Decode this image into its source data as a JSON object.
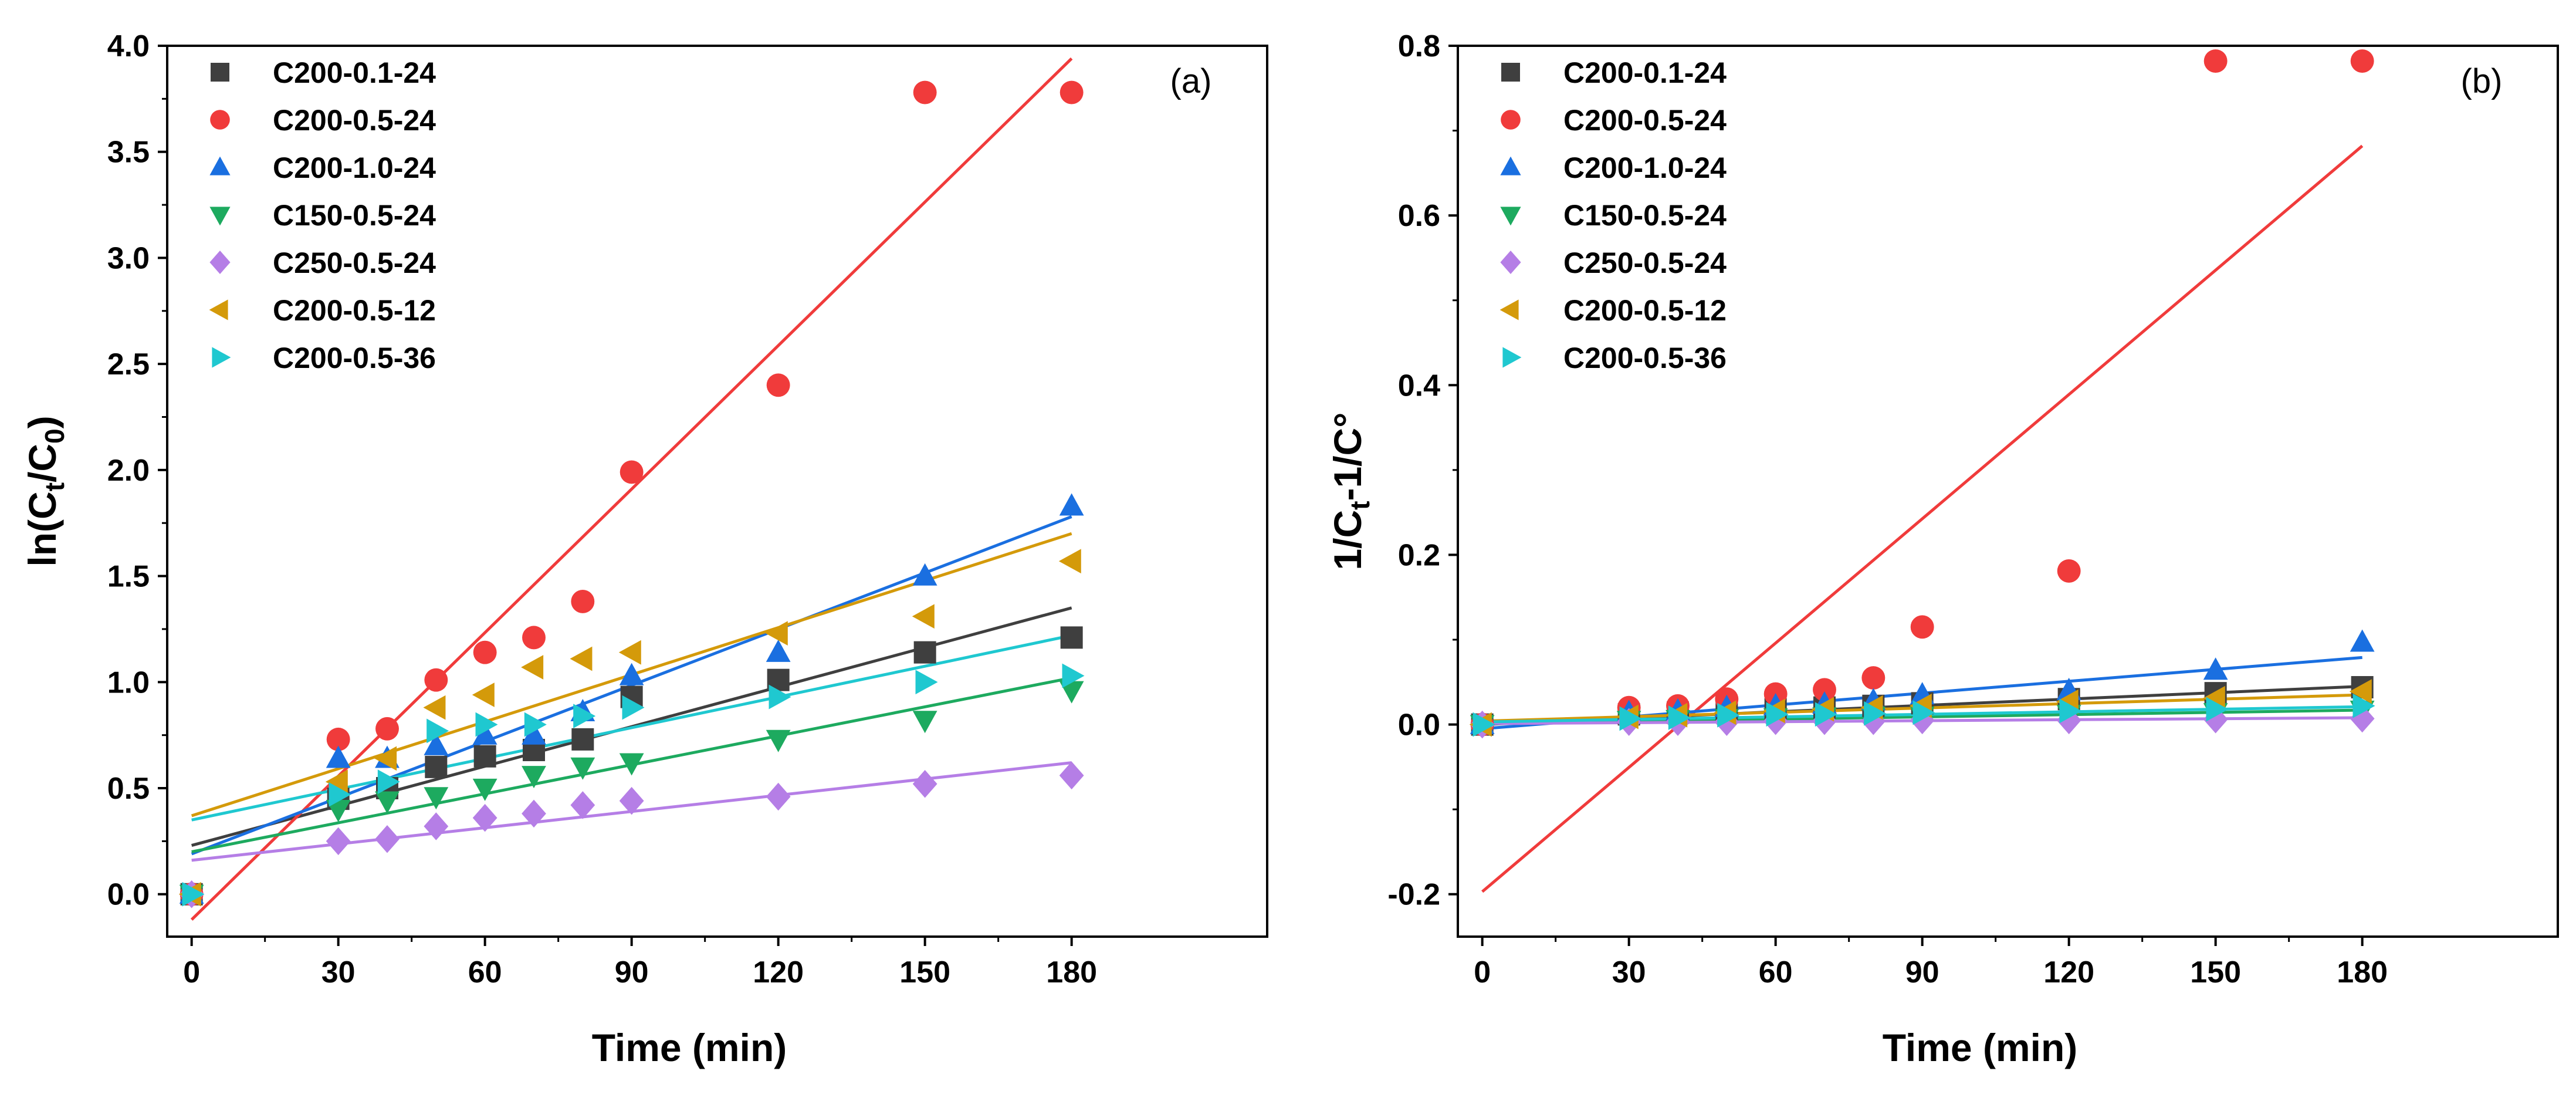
{
  "chart_data": [
    {
      "type": "scatter",
      "panel_label": "(a)",
      "xlabel": "Time (min)",
      "ylabel_parts": [
        "ln(C",
        "t",
        "/C",
        "0",
        ")"
      ],
      "xlim": [
        -5,
        220
      ],
      "ylim": [
        -0.2,
        4.0
      ],
      "xticks": [
        0,
        30,
        60,
        90,
        120,
        150,
        180
      ],
      "yticks": [
        0.0,
        0.5,
        1.0,
        1.5,
        2.0,
        2.5,
        3.0,
        3.5,
        4.0
      ],
      "ytick_labels": [
        "0.0",
        "0.5",
        "1.0",
        "1.5",
        "2.0",
        "2.5",
        "3.0",
        "3.5",
        "4.0"
      ],
      "legend_position": "top-left",
      "x": [
        0,
        30,
        40,
        50,
        60,
        70,
        80,
        90,
        120,
        150,
        180
      ],
      "series": [
        {
          "name": "C200-0.1-24",
          "marker": "square",
          "color": "#3f3f3f",
          "values": [
            0,
            0.45,
            0.5,
            0.6,
            0.65,
            0.68,
            0.73,
            0.93,
            1.01,
            1.14,
            1.21
          ],
          "fit": [
            0.23,
            1.35
          ]
        },
        {
          "name": "C200-0.5-24",
          "marker": "circle",
          "color": "#f03b3b",
          "values": [
            0,
            0.73,
            0.78,
            1.01,
            1.14,
            1.21,
            1.38,
            1.99,
            2.4,
            3.78,
            3.78
          ],
          "fit": [
            -0.12,
            3.94
          ]
        },
        {
          "name": "C200-1.0-24",
          "marker": "triangle-up",
          "color": "#1a6fe0",
          "values": [
            0,
            0.64,
            0.64,
            0.7,
            0.75,
            0.75,
            0.86,
            1.03,
            1.14,
            1.5,
            1.83
          ],
          "fit": [
            0.19,
            1.78
          ]
        },
        {
          "name": "C150-0.5-24",
          "marker": "triangle-down",
          "color": "#1daa5f",
          "values": [
            0,
            0.4,
            0.44,
            0.46,
            0.5,
            0.56,
            0.6,
            0.62,
            0.73,
            0.82,
            0.96
          ],
          "fit": [
            0.2,
            1.02
          ]
        },
        {
          "name": "C250-0.5-24",
          "marker": "diamond",
          "color": "#b57ee6",
          "values": [
            0,
            0.25,
            0.26,
            0.32,
            0.36,
            0.38,
            0.42,
            0.44,
            0.46,
            0.52,
            0.56
          ],
          "fit": [
            0.16,
            0.62
          ]
        },
        {
          "name": "C200-0.5-12",
          "marker": "triangle-left",
          "color": "#d49a0a",
          "values": [
            0,
            0.53,
            0.64,
            0.88,
            0.94,
            1.07,
            1.11,
            1.14,
            1.23,
            1.31,
            1.57
          ],
          "fit": [
            0.37,
            1.7
          ]
        },
        {
          "name": "C200-0.5-36",
          "marker": "triangle-right",
          "color": "#1fc8d0",
          "values": [
            0,
            0.47,
            0.53,
            0.77,
            0.8,
            0.8,
            0.84,
            0.88,
            0.93,
            1.0,
            1.03
          ],
          "fit": [
            0.35,
            1.22
          ]
        }
      ]
    },
    {
      "type": "scatter",
      "panel_label": "(b)",
      "xlabel": "Time (min)",
      "ylabel_parts": [
        "1/C",
        "t",
        "-1/C°"
      ],
      "xlim": [
        -5,
        220
      ],
      "ylim": [
        -0.25,
        0.8
      ],
      "xticks": [
        0,
        30,
        60,
        90,
        120,
        150,
        180
      ],
      "yticks": [
        -0.2,
        0.0,
        0.2,
        0.4,
        0.6,
        0.8
      ],
      "ytick_labels": [
        "-0.2",
        "0.0",
        "0.2",
        "0.4",
        "0.6",
        "0.8"
      ],
      "legend_position": "top-left",
      "x": [
        0,
        30,
        40,
        50,
        60,
        70,
        80,
        90,
        120,
        150,
        180
      ],
      "series": [
        {
          "name": "C200-0.1-24",
          "marker": "square",
          "color": "#3f3f3f",
          "values": [
            0,
            0.012,
            0.014,
            0.016,
            0.018,
            0.02,
            0.022,
            0.025,
            0.03,
            0.037,
            0.044
          ],
          "fit": [
            0.0,
            0.045
          ]
        },
        {
          "name": "C200-0.5-24",
          "marker": "circle",
          "color": "#f03b3b",
          "values": [
            0,
            0.02,
            0.022,
            0.03,
            0.036,
            0.041,
            0.055,
            0.115,
            0.181,
            0.782,
            0.782
          ],
          "fit": [
            -0.197,
            0.682
          ]
        },
        {
          "name": "C200-1.0-24",
          "marker": "triangle-up",
          "color": "#1a6fe0",
          "values": [
            0,
            0.014,
            0.016,
            0.02,
            0.022,
            0.024,
            0.028,
            0.035,
            0.04,
            0.064,
            0.097
          ],
          "fit": [
            -0.005,
            0.079
          ]
        },
        {
          "name": "C150-0.5-24",
          "marker": "triangle-down",
          "color": "#1daa5f",
          "values": [
            0,
            0.005,
            0.006,
            0.007,
            0.008,
            0.009,
            0.01,
            0.01,
            0.012,
            0.014,
            0.017
          ],
          "fit": [
            0.001,
            0.017
          ]
        },
        {
          "name": "C250-0.5-24",
          "marker": "diamond",
          "color": "#b57ee6",
          "values": [
            0,
            0.003,
            0.003,
            0.003,
            0.004,
            0.004,
            0.004,
            0.005,
            0.005,
            0.006,
            0.007
          ],
          "fit": [
            0.001,
            0.008
          ]
        },
        {
          "name": "C200-0.5-12",
          "marker": "triangle-left",
          "color": "#d49a0a",
          "values": [
            0,
            0.009,
            0.011,
            0.014,
            0.016,
            0.018,
            0.02,
            0.022,
            0.027,
            0.031,
            0.039
          ],
          "fit": [
            0.004,
            0.035
          ]
        },
        {
          "name": "C200-0.5-36",
          "marker": "triangle-right",
          "color": "#1fc8d0",
          "values": [
            0,
            0.007,
            0.008,
            0.011,
            0.012,
            0.012,
            0.013,
            0.014,
            0.016,
            0.018,
            0.022
          ],
          "fit": [
            0.003,
            0.021
          ]
        }
      ]
    }
  ]
}
